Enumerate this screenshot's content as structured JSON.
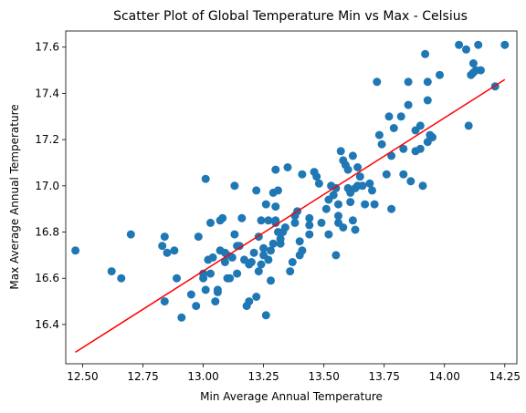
{
  "chart_data": {
    "type": "scatter",
    "title": "Scatter Plot of Global Temperature Min vs Max - Celsius",
    "xlabel": "Min Average Annual Temperature",
    "ylabel": "Max Average Annual Temperature",
    "xlim": [
      12.43,
      14.3
    ],
    "ylim": [
      16.23,
      17.67
    ],
    "xticks": [
      12.5,
      12.75,
      13.0,
      13.25,
      13.5,
      13.75,
      14.0,
      14.25
    ],
    "xtick_labels": [
      "12.50",
      "12.75",
      "13.00",
      "13.25",
      "13.50",
      "13.75",
      "14.00",
      "14.25"
    ],
    "yticks": [
      16.4,
      16.6,
      16.8,
      17.0,
      17.2,
      17.4,
      17.6
    ],
    "ytick_labels": [
      "16.4",
      "16.6",
      "16.8",
      "17.0",
      "17.2",
      "17.4",
      "17.6"
    ],
    "grid": false,
    "legend": null,
    "points": [
      [
        12.47,
        16.72
      ],
      [
        12.62,
        16.63
      ],
      [
        12.66,
        16.6
      ],
      [
        12.7,
        16.79
      ],
      [
        12.83,
        16.74
      ],
      [
        12.84,
        16.78
      ],
      [
        12.84,
        16.5
      ],
      [
        12.85,
        16.71
      ],
      [
        12.88,
        16.72
      ],
      [
        12.89,
        16.6
      ],
      [
        12.91,
        16.43
      ],
      [
        12.95,
        16.53
      ],
      [
        12.97,
        16.48
      ],
      [
        12.98,
        16.78
      ],
      [
        13.0,
        16.62
      ],
      [
        13.0,
        16.6
      ],
      [
        13.01,
        16.55
      ],
      [
        13.01,
        17.03
      ],
      [
        13.02,
        16.68
      ],
      [
        13.03,
        16.84
      ],
      [
        13.03,
        16.62
      ],
      [
        13.04,
        16.69
      ],
      [
        13.05,
        16.5
      ],
      [
        13.06,
        16.55
      ],
      [
        13.06,
        16.54
      ],
      [
        13.07,
        16.72
      ],
      [
        13.07,
        16.85
      ],
      [
        13.08,
        16.86
      ],
      [
        13.09,
        16.67
      ],
      [
        13.09,
        16.71
      ],
      [
        13.1,
        16.7
      ],
      [
        13.1,
        16.6
      ],
      [
        13.11,
        16.6
      ],
      [
        13.12,
        16.69
      ],
      [
        13.13,
        16.79
      ],
      [
        13.13,
        17.0
      ],
      [
        13.14,
        16.62
      ],
      [
        13.14,
        16.74
      ],
      [
        13.15,
        16.74
      ],
      [
        13.16,
        16.86
      ],
      [
        13.17,
        16.68
      ],
      [
        13.18,
        16.48
      ],
      [
        13.19,
        16.5
      ],
      [
        13.19,
        16.66
      ],
      [
        13.2,
        16.67
      ],
      [
        13.21,
        16.71
      ],
      [
        13.22,
        16.52
      ],
      [
        13.22,
        16.98
      ],
      [
        13.23,
        16.78
      ],
      [
        13.23,
        16.63
      ],
      [
        13.24,
        16.66
      ],
      [
        13.24,
        16.85
      ],
      [
        13.25,
        16.7
      ],
      [
        13.25,
        16.73
      ],
      [
        13.26,
        16.92
      ],
      [
        13.26,
        16.44
      ],
      [
        13.27,
        16.85
      ],
      [
        13.27,
        16.68
      ],
      [
        13.28,
        16.72
      ],
      [
        13.28,
        16.59
      ],
      [
        13.29,
        16.97
      ],
      [
        13.29,
        16.75
      ],
      [
        13.3,
        16.85
      ],
      [
        13.3,
        16.84
      ],
      [
        13.3,
        16.91
      ],
      [
        13.3,
        17.07
      ],
      [
        13.31,
        16.8
      ],
      [
        13.31,
        16.98
      ],
      [
        13.32,
        16.77
      ],
      [
        13.32,
        16.75
      ],
      [
        13.33,
        16.8
      ],
      [
        13.34,
        16.82
      ],
      [
        13.35,
        17.08
      ],
      [
        13.36,
        16.63
      ],
      [
        13.37,
        16.67
      ],
      [
        13.38,
        16.84
      ],
      [
        13.38,
        16.87
      ],
      [
        13.39,
        16.89
      ],
      [
        13.4,
        16.76
      ],
      [
        13.4,
        16.7
      ],
      [
        13.41,
        16.72
      ],
      [
        13.41,
        17.05
      ],
      [
        13.44,
        16.83
      ],
      [
        13.44,
        16.86
      ],
      [
        13.44,
        16.79
      ],
      [
        13.46,
        17.06
      ],
      [
        13.47,
        17.04
      ],
      [
        13.48,
        17.01
      ],
      [
        13.49,
        16.84
      ],
      [
        13.51,
        16.9
      ],
      [
        13.52,
        16.94
      ],
      [
        13.52,
        16.79
      ],
      [
        13.53,
        17.0
      ],
      [
        13.54,
        16.96
      ],
      [
        13.55,
        16.7
      ],
      [
        13.55,
        16.99
      ],
      [
        13.56,
        16.87
      ],
      [
        13.56,
        16.92
      ],
      [
        13.56,
        16.84
      ],
      [
        13.57,
        17.15
      ],
      [
        13.58,
        17.11
      ],
      [
        13.58,
        16.82
      ],
      [
        13.59,
        17.09
      ],
      [
        13.6,
        17.07
      ],
      [
        13.6,
        16.99
      ],
      [
        13.61,
        16.97
      ],
      [
        13.61,
        16.93
      ],
      [
        13.62,
        16.85
      ],
      [
        13.62,
        17.13
      ],
      [
        13.63,
        16.99
      ],
      [
        13.63,
        16.81
      ],
      [
        13.64,
        17.0
      ],
      [
        13.64,
        17.08
      ],
      [
        13.65,
        17.04
      ],
      [
        13.66,
        17.0
      ],
      [
        13.67,
        16.92
      ],
      [
        13.69,
        17.01
      ],
      [
        13.7,
        16.98
      ],
      [
        13.71,
        16.92
      ],
      [
        13.72,
        17.45
      ],
      [
        13.73,
        17.22
      ],
      [
        13.74,
        17.18
      ],
      [
        13.76,
        17.05
      ],
      [
        13.77,
        17.3
      ],
      [
        13.78,
        17.13
      ],
      [
        13.78,
        16.9
      ],
      [
        13.79,
        17.25
      ],
      [
        13.82,
        17.3
      ],
      [
        13.83,
        17.16
      ],
      [
        13.83,
        17.05
      ],
      [
        13.85,
        17.35
      ],
      [
        13.85,
        17.45
      ],
      [
        13.86,
        17.02
      ],
      [
        13.88,
        17.24
      ],
      [
        13.88,
        17.15
      ],
      [
        13.9,
        17.16
      ],
      [
        13.9,
        17.26
      ],
      [
        13.91,
        17.0
      ],
      [
        13.92,
        17.57
      ],
      [
        13.93,
        17.45
      ],
      [
        13.93,
        17.19
      ],
      [
        13.93,
        17.37
      ],
      [
        13.94,
        17.22
      ],
      [
        13.95,
        17.21
      ],
      [
        13.98,
        17.48
      ],
      [
        14.06,
        17.61
      ],
      [
        14.09,
        17.59
      ],
      [
        14.1,
        17.26
      ],
      [
        14.11,
        17.48
      ],
      [
        14.12,
        17.53
      ],
      [
        14.12,
        17.49
      ],
      [
        14.13,
        17.5
      ],
      [
        14.14,
        17.61
      ],
      [
        14.15,
        17.5
      ],
      [
        14.21,
        17.43
      ],
      [
        14.25,
        17.61
      ]
    ],
    "fit_line": {
      "x": [
        12.47,
        14.25
      ],
      "y": [
        16.28,
        17.46
      ]
    },
    "colors": {
      "points": "#1f77b4",
      "fit_line": "#ff0000"
    }
  }
}
